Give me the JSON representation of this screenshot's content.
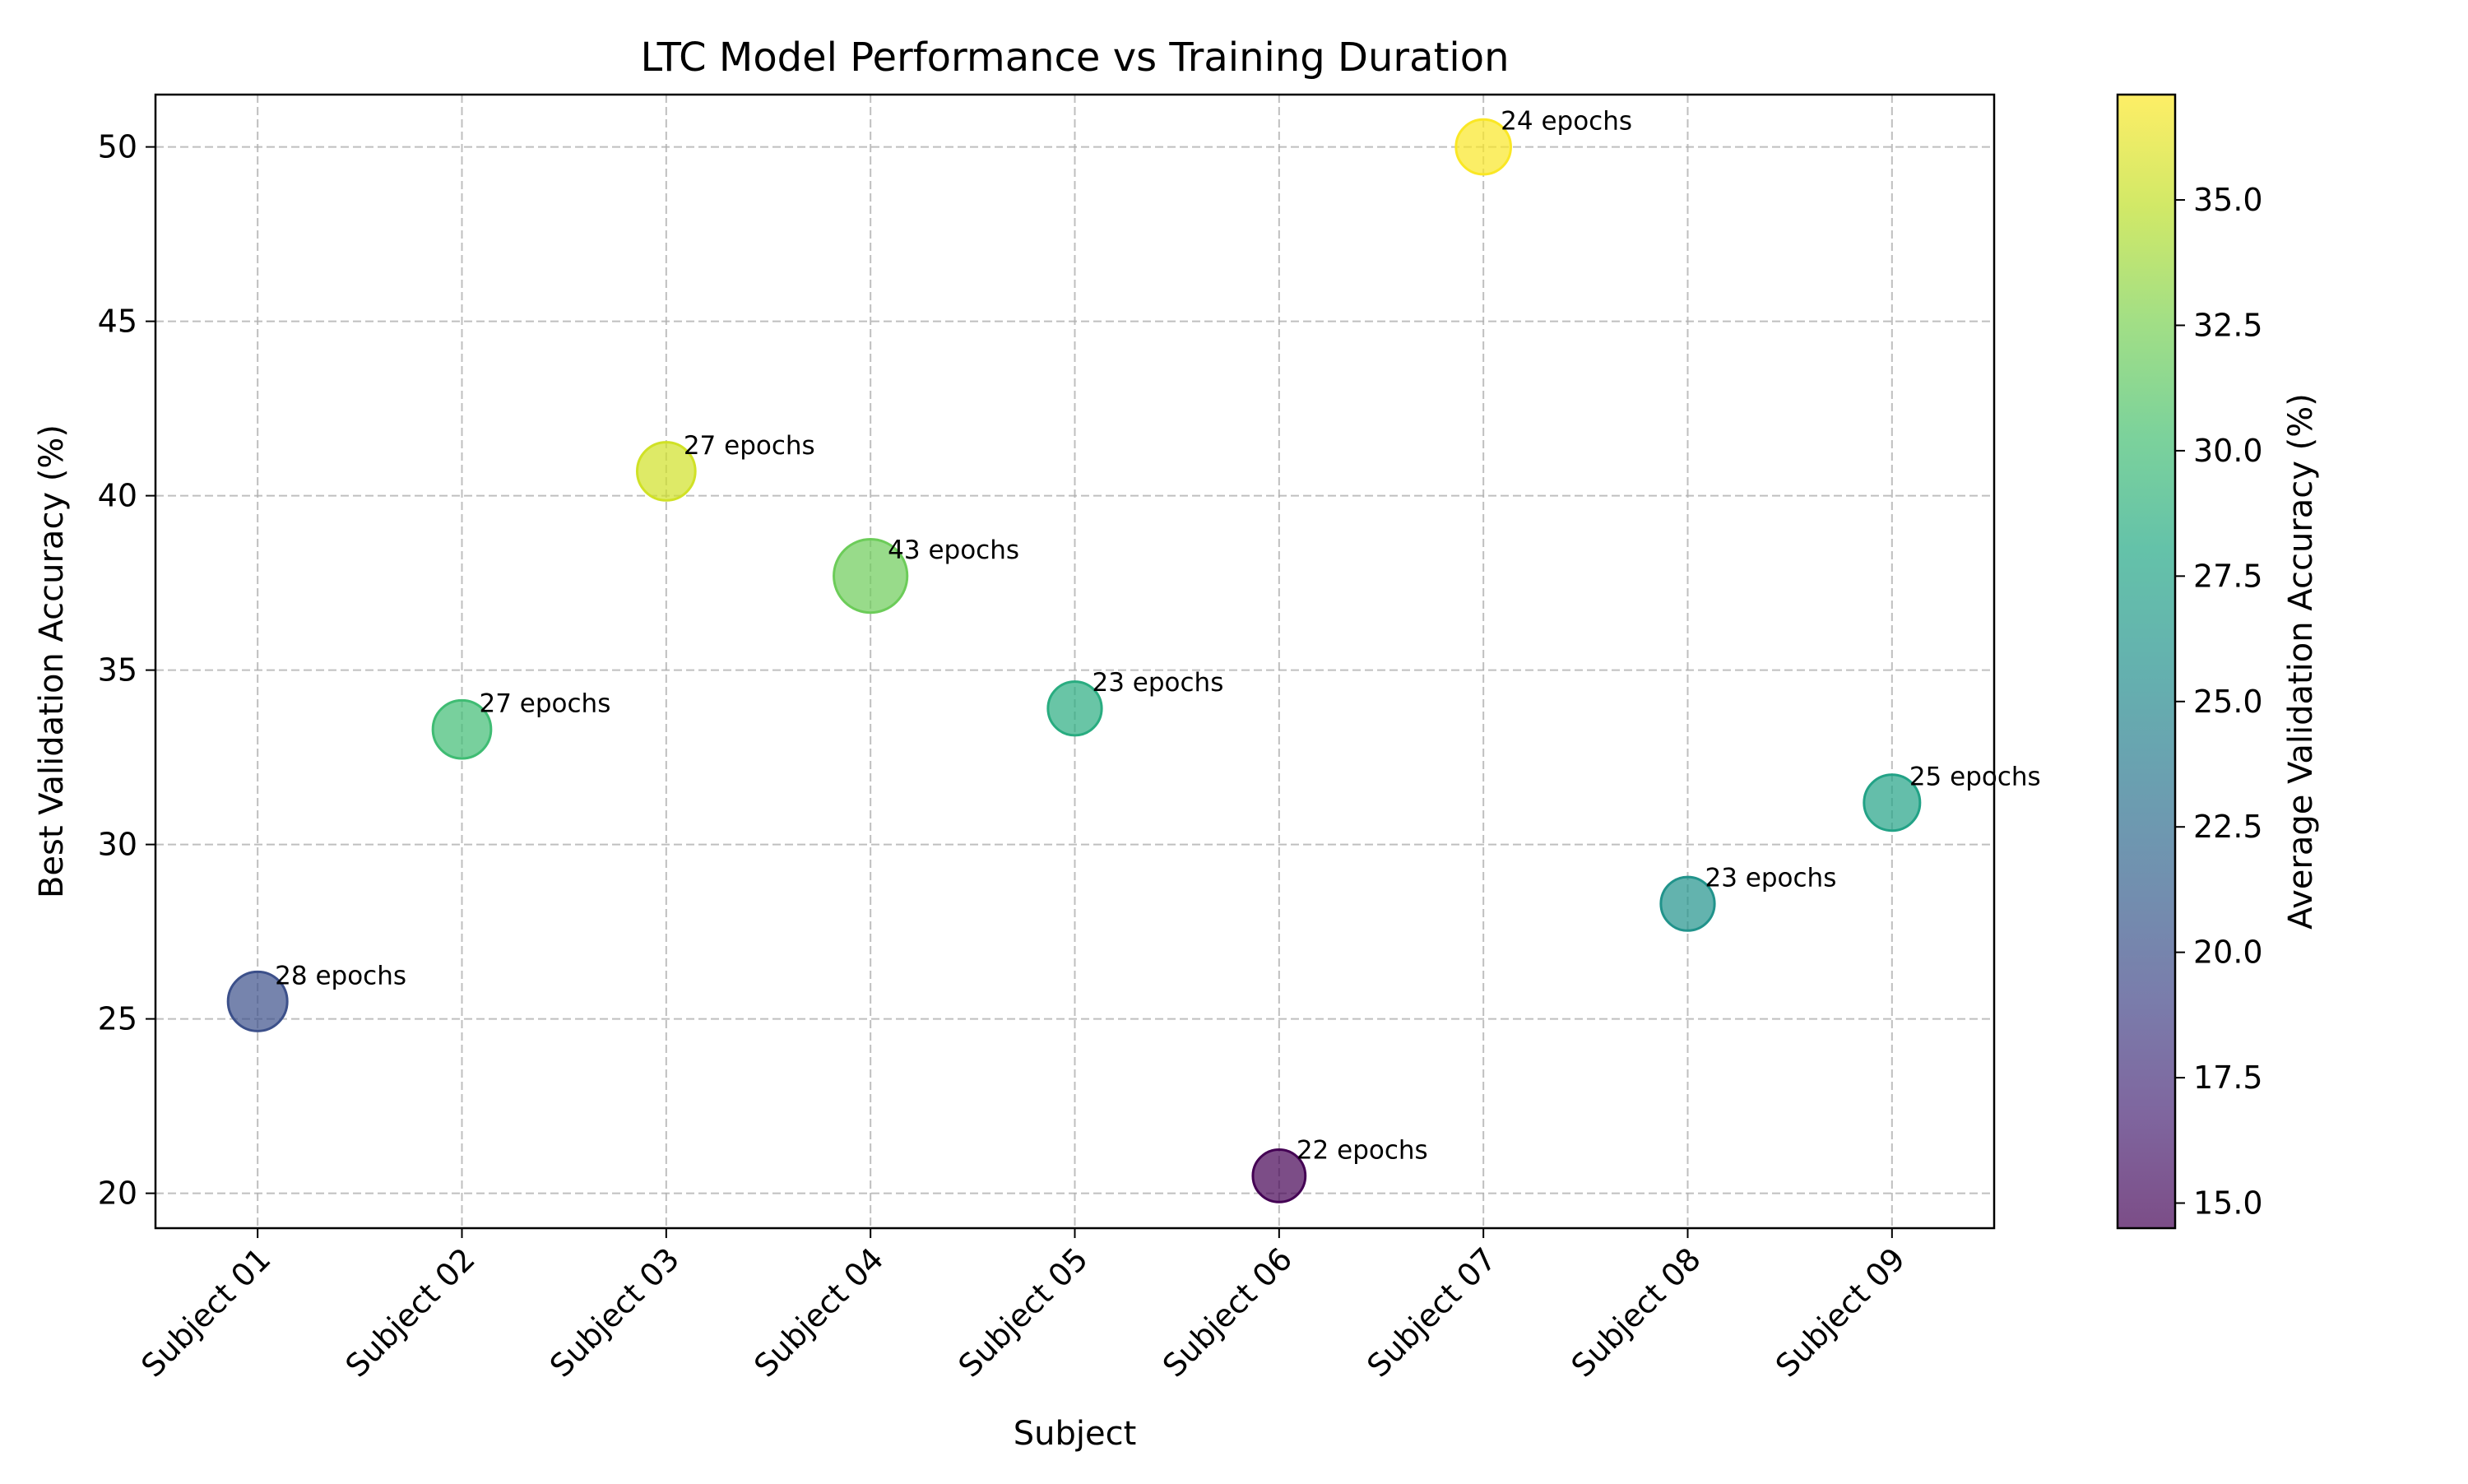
{
  "chart_data": {
    "type": "scatter",
    "title": "LTC Model Performance vs Training Duration",
    "xlabel": "Subject",
    "ylabel": "Best Validation Accuracy (%)",
    "categories": [
      "Subject 01",
      "Subject 02",
      "Subject 03",
      "Subject 04",
      "Subject 05",
      "Subject 06",
      "Subject 07",
      "Subject 08",
      "Subject 09"
    ],
    "best_accuracy": [
      25.5,
      33.3,
      40.7,
      37.7,
      33.9,
      20.5,
      50.0,
      28.3,
      31.2
    ],
    "average_accuracy": [
      20.0,
      30.0,
      35.5,
      32.0,
      28.5,
      14.5,
      37.0,
      26.0,
      27.5
    ],
    "epochs": [
      28,
      27,
      27,
      43,
      23,
      22,
      24,
      23,
      25
    ],
    "point_labels": [
      "28 epochs",
      "27 epochs",
      "27 epochs",
      "43 epochs",
      "23 epochs",
      "22 epochs",
      "24 epochs",
      "23 epochs",
      "25 epochs"
    ],
    "ylim": [
      19,
      51.5
    ],
    "yticks": [
      20,
      25,
      30,
      35,
      40,
      45,
      50
    ],
    "grid": true,
    "colormap": "viridis",
    "colorbar": {
      "label": "Average Validation Accuracy (%)",
      "range": [
        14.5,
        37.1
      ],
      "ticks": [
        15.0,
        17.5,
        20.0,
        22.5,
        25.0,
        27.5,
        30.0,
        32.5,
        35.0
      ],
      "tick_labels": [
        "15.0",
        "17.5",
        "20.0",
        "22.5",
        "25.0",
        "27.5",
        "30.0",
        "32.5",
        "35.0"
      ]
    },
    "bubble_alpha": 0.7
  }
}
